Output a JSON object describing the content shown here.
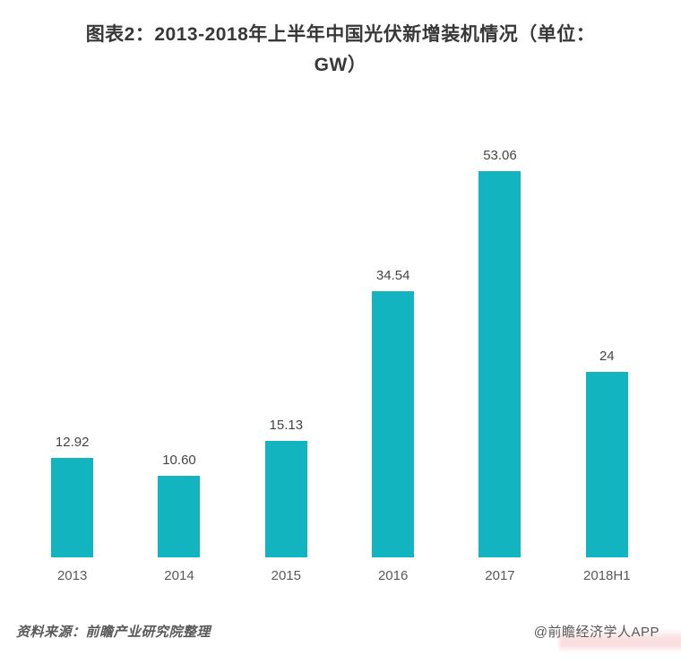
{
  "title": {
    "line1": "图表2：2013-2018年上半年中国光伏新增装机情况（单位：",
    "line2": "GW）"
  },
  "chart_data": {
    "type": "bar",
    "title": "图表2：2013-2018年上半年中国光伏新增装机情况（单位：GW）",
    "unit": "GW",
    "categories": [
      "2013",
      "2014",
      "2015",
      "2016",
      "2017",
      "2018H1"
    ],
    "values": [
      12.92,
      10.6,
      15.13,
      34.54,
      53.06,
      24
    ],
    "value_labels": [
      "12.92",
      "10.60",
      "15.13",
      "34.54",
      "53.06",
      "24"
    ],
    "bar_color": "#12B5BF",
    "label_color": "#444444",
    "axis_label_color": "#595959",
    "ylim": [
      0,
      55
    ],
    "grid": false,
    "axes_visible": false,
    "legend": "none"
  },
  "footer": {
    "source": "资料来源：前瞻产业研究院整理",
    "credit": "@前瞻经济学人APP"
  }
}
